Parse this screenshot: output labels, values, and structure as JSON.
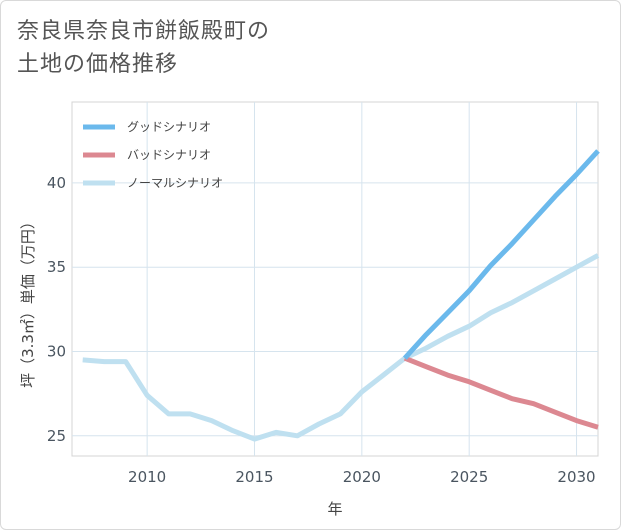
{
  "title_line1": "奈良県奈良市餅飯殿町の",
  "title_line2": "土地の価格推移",
  "chart_data": {
    "type": "line",
    "xlabel": "年",
    "ylabel": "坪（3.3㎡）単価（万円）",
    "xlim": [
      2006.5,
      2031
    ],
    "ylim": [
      23.8,
      44.8
    ],
    "xticks": [
      2010,
      2015,
      2020,
      2025,
      2030
    ],
    "yticks": [
      25,
      30,
      35,
      40
    ],
    "legend_position": "top-left",
    "series": [
      {
        "name": "グッドシナリオ",
        "color": "#6bb9ec",
        "x": [
          2022,
          2023,
          2024,
          2025,
          2026,
          2027,
          2028,
          2029,
          2030,
          2031
        ],
        "y": [
          29.6,
          31.0,
          32.3,
          33.6,
          35.1,
          36.4,
          37.8,
          39.2,
          40.5,
          41.9
        ]
      },
      {
        "name": "バッドシナリオ",
        "color": "#dc8891",
        "x": [
          2022,
          2023,
          2024,
          2025,
          2026,
          2027,
          2028,
          2029,
          2030,
          2031
        ],
        "y": [
          29.6,
          29.1,
          28.6,
          28.2,
          27.7,
          27.2,
          26.9,
          26.4,
          25.9,
          25.5
        ]
      },
      {
        "name": "ノーマルシナリオ",
        "color": "#bfe0f0",
        "x": [
          2007,
          2008,
          2009,
          2010,
          2011,
          2012,
          2013,
          2014,
          2015,
          2016,
          2017,
          2018,
          2019,
          2020,
          2021,
          2022,
          2023,
          2024,
          2025,
          2026,
          2027,
          2028,
          2029,
          2030,
          2031
        ],
        "y": [
          29.5,
          29.4,
          29.4,
          27.4,
          26.3,
          26.3,
          25.9,
          25.3,
          24.8,
          25.2,
          25.0,
          25.7,
          26.3,
          27.6,
          28.6,
          29.6,
          30.2,
          30.9,
          31.5,
          32.3,
          32.9,
          33.6,
          34.3,
          35.0,
          35.7
        ]
      }
    ]
  }
}
